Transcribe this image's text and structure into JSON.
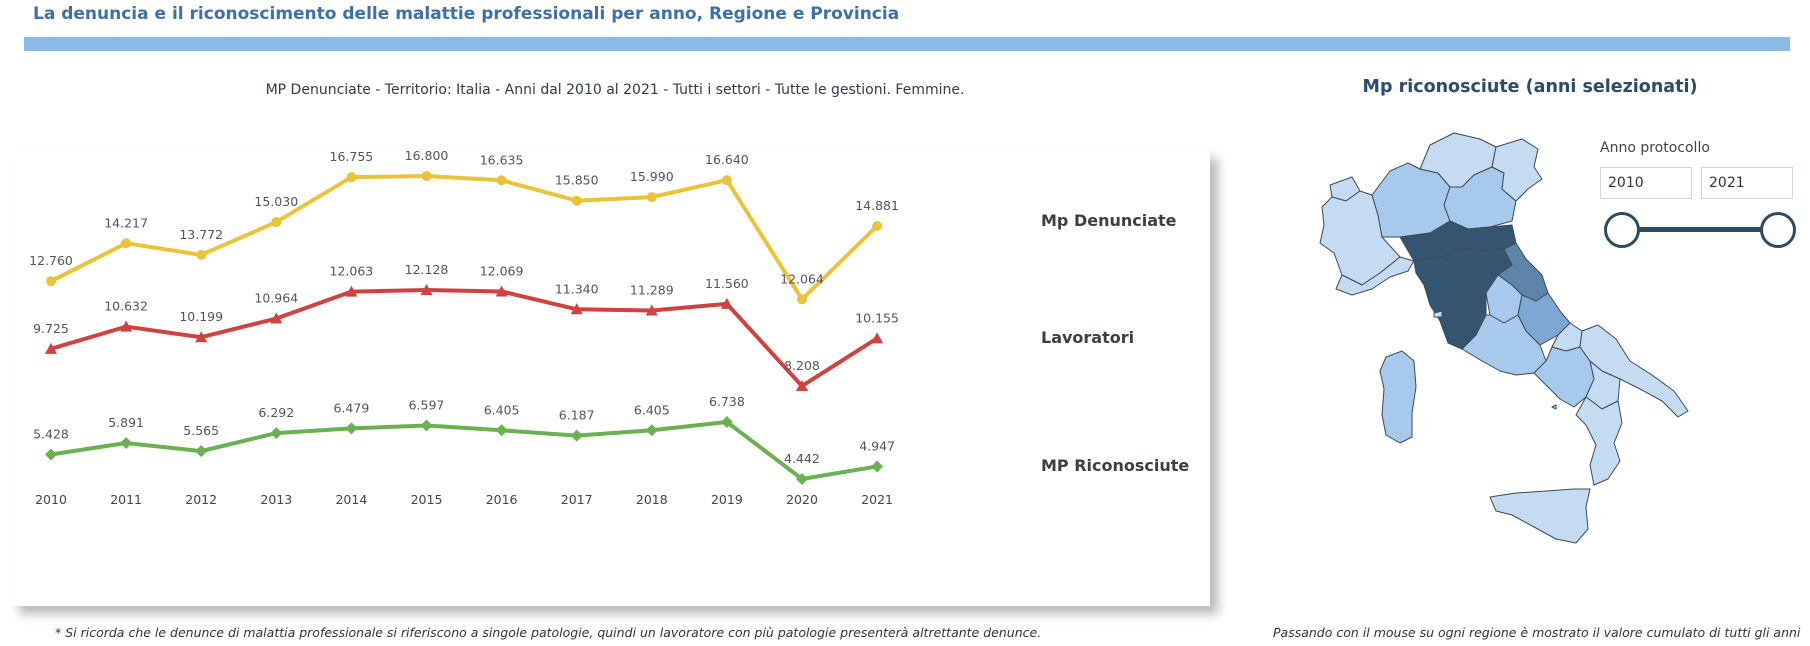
{
  "header": {
    "title": "La denuncia e il riconoscimento delle malattie professionali per anno, Regione e Provincia"
  },
  "chart_subtitle": "MP Denunciate - Territorio: Italia - Anni dal 2010 al 2021 - Tutti i settori  - Tutte le gestioni. Femmine.",
  "chart_data": {
    "type": "line",
    "title": "MP Denunciate - Territorio: Italia - Anni dal 2010 al 2021 - Tutti i settori  - Tutte le gestioni. Femmine.",
    "xlabel": "",
    "ylabel": "",
    "grid": false,
    "legend": "right (inline series labels)",
    "categories": [
      "2010",
      "2011",
      "2012",
      "2013",
      "2014",
      "2015",
      "2016",
      "2017",
      "2018",
      "2019",
      "2020",
      "2021"
    ],
    "series": [
      {
        "name": "Mp Denunciate",
        "color": "#e9c43b",
        "marker": "circle",
        "values": [
          12760,
          14217,
          13772,
          15030,
          16755,
          16800,
          16635,
          15850,
          15990,
          16640,
          12064,
          14881
        ],
        "labels": [
          "12.760",
          "14.217",
          "13.772",
          "15.030",
          "16.755",
          "16.800",
          "16.635",
          "15.850",
          "15.990",
          "16.640",
          "12.064",
          "14.881"
        ]
      },
      {
        "name": "Lavoratori",
        "color": "#cf4240",
        "marker": "triangle",
        "values": [
          9725,
          10632,
          10199,
          10964,
          12063,
          12128,
          12069,
          11340,
          11289,
          11560,
          8208,
          10155
        ],
        "labels": [
          "9.725",
          "10.632",
          "10.199",
          "10.964",
          "12.063",
          "12.128",
          "12.069",
          "11.340",
          "11.289",
          "11.560",
          "8.208",
          "10.155"
        ]
      },
      {
        "name": "MP Riconosciute",
        "color": "#69b151",
        "marker": "diamond",
        "values": [
          5428,
          5891,
          5565,
          6292,
          6479,
          6597,
          6405,
          6187,
          6405,
          6738,
          4442,
          4947
        ],
        "labels": [
          "5.428",
          "5.891",
          "5.565",
          "6.292",
          "6.479",
          "6.597",
          "6.405",
          "6.187",
          "6.405",
          "6.738",
          "4.442",
          "4.947"
        ]
      }
    ]
  },
  "footnote": "* Si ricorda che le denunce di malattia professionale si riferiscono a singole patologie, quindi un lavoratore con più patologie presenterà altrettante denunce.",
  "map": {
    "title": "Mp riconosciute (anni selezionati)",
    "note": "Passando con il mouse su ogni regione è mostrato il valore cumulato di tutti gli anni",
    "colors": {
      "light": "#c4dbf1",
      "mid": "#a6c9ec",
      "strong": "#7ea8d3",
      "darker": "#5e84a9",
      "darkest": "#35546f",
      "border": "#3d4a57"
    }
  },
  "slicer": {
    "label": "Anno protocollo",
    "start": "2010",
    "end": "2021"
  }
}
